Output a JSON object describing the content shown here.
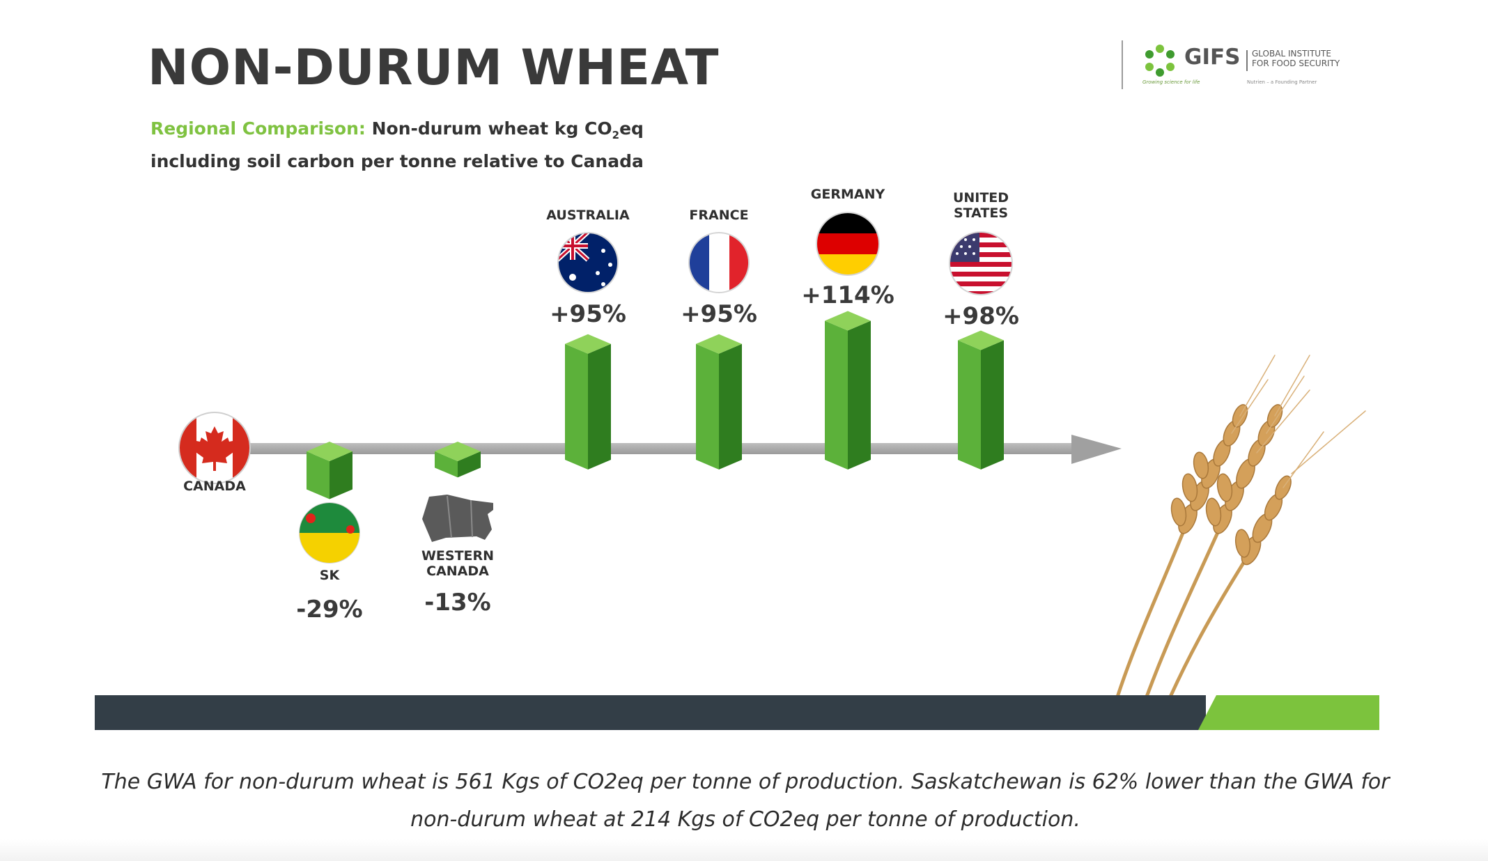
{
  "slide": {
    "title": "NON-DURUM WHEAT",
    "subtitle_accent": "Regional Comparison:",
    "subtitle_main": "Non-durum wheat kg CO",
    "subtitle_sub": "2",
    "subtitle_tail": "eq",
    "subtitle_line2": "including soil carbon per tonne relative to Canada"
  },
  "logo": {
    "name": "GIFS",
    "institute_line1": "GLOBAL INSTITUTE",
    "institute_line2": "FOR FOOD SECURITY",
    "tagline_left": "Growing science for life",
    "tagline_right": "Nutrien – a Founding Partner",
    "icon": "gifs-leaf-ring-logo"
  },
  "chart_data": {
    "type": "bar",
    "baseline": "CANADA",
    "categories": [
      "SK",
      "WESTERN CANADA",
      "AUSTRALIA",
      "FRANCE",
      "GERMANY",
      "UNITED STATES"
    ],
    "values": [
      -29,
      -13,
      95,
      95,
      114,
      98
    ],
    "labels": [
      "-29%",
      "-13%",
      "+95%",
      "+95%",
      "+114%",
      "+98%"
    ],
    "icons": [
      "saskatchewan-flag-icon",
      "western-canada-map-icon",
      "australia-flag-icon",
      "france-flag-icon",
      "germany-flag-icon",
      "united-states-flag-icon"
    ],
    "baseline_icon": "canada-flag-icon",
    "colors": {
      "bar": "#5cb13a",
      "bar_dark": "#2f7d1f",
      "bar_light": "#8fd25a",
      "axis": "#a8a8a8"
    },
    "grid": false
  },
  "caption": "The GWA for non-durum wheat is 561 Kgs of CO2eq per tonne of production. Saskatchewan is 62% lower than the GWA for non-durum wheat at 214 Kgs of CO2eq per tonne of production.",
  "colors": {
    "footer_dark": "#333e47",
    "footer_accent": "#7cc33d",
    "title": "#3a3a3a",
    "accent_green": "#7fc241"
  }
}
